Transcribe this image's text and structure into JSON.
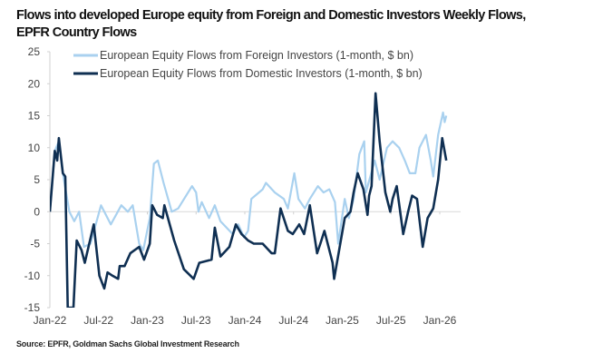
{
  "title_line1": "Flows into developed Europe equity from Foreign and Domestic Investors Weekly Flows,",
  "title_line2": "EPFR Country Flows",
  "source": "Source: EPFR, Goldman Sachs Global Investment Research",
  "chart_data": {
    "type": "line",
    "title": "Flows into developed Europe equity from Foreign and Domestic Investors Weekly Flows, EPFR Country Flows",
    "xlabel": "",
    "ylabel": "",
    "ylim": [
      -15,
      25
    ],
    "yticks": [
      -15,
      -10,
      -5,
      0,
      5,
      10,
      15,
      20,
      25
    ],
    "xlim_months_since_jan22": [
      0,
      49
    ],
    "xticks": [
      {
        "label": "Jan-22",
        "month": 0
      },
      {
        "label": "Jul-22",
        "month": 6
      },
      {
        "label": "Jan-23",
        "month": 12
      },
      {
        "label": "Jul-23",
        "month": 18
      },
      {
        "label": "Jan-24",
        "month": 24
      },
      {
        "label": "Jul-24",
        "month": 30
      },
      {
        "label": "Jan-25",
        "month": 36
      },
      {
        "label": "Jul-25",
        "month": 42
      },
      {
        "label": "Jan-26",
        "month": 48
      }
    ],
    "legend_position": "top",
    "grid": false,
    "series": [
      {
        "name": "European Equity Flows from Foreign Investors (1-month, $ bn)",
        "color": "#a9d1ef",
        "points": [
          [
            0,
            0
          ],
          [
            0.6,
            9.5
          ],
          [
            1.1,
            11
          ],
          [
            1.6,
            6
          ],
          [
            2.4,
            0
          ],
          [
            3,
            -1.5
          ],
          [
            3.6,
            0
          ],
          [
            4.2,
            -5.5
          ],
          [
            5,
            -5
          ],
          [
            6.3,
            1
          ],
          [
            7.5,
            -2
          ],
          [
            8.8,
            1
          ],
          [
            9.6,
            0
          ],
          [
            10.2,
            1
          ],
          [
            11,
            -5
          ],
          [
            11.5,
            -6
          ],
          [
            12.3,
            -1
          ],
          [
            12.8,
            7.5
          ],
          [
            13.3,
            8
          ],
          [
            14,
            4.5
          ],
          [
            15,
            0
          ],
          [
            15.8,
            0.5
          ],
          [
            17.5,
            4
          ],
          [
            18,
            3
          ],
          [
            18.3,
            0
          ],
          [
            18.7,
            1.5
          ],
          [
            19.6,
            -1
          ],
          [
            20.3,
            1
          ],
          [
            21,
            -1.5
          ],
          [
            22.5,
            -3.5
          ],
          [
            23.2,
            -2
          ],
          [
            23.9,
            -4
          ],
          [
            24.4,
            -3
          ],
          [
            24.8,
            2
          ],
          [
            26.2,
            3.5
          ],
          [
            26.6,
            4.5
          ],
          [
            27.7,
            3
          ],
          [
            28.8,
            2
          ],
          [
            29.3,
            0.5
          ],
          [
            30.1,
            6
          ],
          [
            30.6,
            2
          ],
          [
            31.4,
            0.5
          ],
          [
            32,
            2
          ],
          [
            33,
            4
          ],
          [
            33.7,
            3
          ],
          [
            34.4,
            3.5
          ],
          [
            35.1,
            1.5
          ],
          [
            35.5,
            -5
          ],
          [
            36.3,
            2
          ],
          [
            36.8,
            -1
          ],
          [
            37.4,
            2
          ],
          [
            38.1,
            9
          ],
          [
            38.7,
            11
          ],
          [
            38.9,
            3
          ],
          [
            40,
            8
          ],
          [
            40.6,
            5
          ],
          [
            41.5,
            10
          ],
          [
            42.2,
            11
          ],
          [
            43,
            10
          ],
          [
            43.7,
            8
          ],
          [
            44.3,
            6
          ],
          [
            45,
            6
          ],
          [
            45.5,
            10
          ],
          [
            46.3,
            12
          ],
          [
            46.9,
            8
          ],
          [
            47.2,
            5.5
          ],
          [
            47.8,
            12
          ],
          [
            48.4,
            15.5
          ],
          [
            48.6,
            14
          ],
          [
            48.8,
            15
          ]
        ]
      },
      {
        "name": "European Equity Flows from Domestic Investors (1-month, $ bn)",
        "color": "#0f2f52",
        "points": [
          [
            0,
            0
          ],
          [
            0.6,
            9.5
          ],
          [
            0.9,
            8
          ],
          [
            1.1,
            11.5
          ],
          [
            1.6,
            6
          ],
          [
            1.9,
            5.5
          ],
          [
            2.2,
            -15
          ],
          [
            2.9,
            -15
          ],
          [
            3.3,
            -4.5
          ],
          [
            3.9,
            -6
          ],
          [
            4.3,
            -8
          ],
          [
            5.4,
            -2
          ],
          [
            6.1,
            -10
          ],
          [
            6.7,
            -12
          ],
          [
            7.1,
            -9.5
          ],
          [
            7.7,
            -10
          ],
          [
            8.4,
            -10.5
          ],
          [
            8.6,
            -8.5
          ],
          [
            9.2,
            -8.5
          ],
          [
            9.9,
            -6.5
          ],
          [
            11,
            -5.5
          ],
          [
            11.6,
            -7.5
          ],
          [
            12.3,
            -5
          ],
          [
            12.6,
            1
          ],
          [
            13.2,
            -0.5
          ],
          [
            13.9,
            -1
          ],
          [
            14.1,
            1
          ],
          [
            15.3,
            -4.5
          ],
          [
            16.5,
            -9
          ],
          [
            17.7,
            -10.5
          ],
          [
            18.4,
            -8
          ],
          [
            19.9,
            -7.5
          ],
          [
            20.3,
            -2.5
          ],
          [
            21,
            -7
          ],
          [
            22.1,
            -5.5
          ],
          [
            22.9,
            -2
          ],
          [
            23.6,
            -3.5
          ],
          [
            24.4,
            -4.5
          ],
          [
            25.1,
            -5
          ],
          [
            26.2,
            -5
          ],
          [
            27.3,
            -6.5
          ],
          [
            27.7,
            -6.5
          ],
          [
            28.4,
            0.5
          ],
          [
            29.3,
            -3
          ],
          [
            29.9,
            -3.5
          ],
          [
            30.7,
            -2
          ],
          [
            31.3,
            -3.5
          ],
          [
            32,
            1
          ],
          [
            32.9,
            -6.5
          ],
          [
            33.3,
            -5
          ],
          [
            33.8,
            -3
          ],
          [
            34.8,
            -8
          ],
          [
            35,
            -10.5
          ],
          [
            36.3,
            -1
          ],
          [
            37,
            0
          ],
          [
            37.4,
            3
          ],
          [
            37.9,
            6
          ],
          [
            38.6,
            3.5
          ],
          [
            39.1,
            -0.5
          ],
          [
            39.3,
            2.5
          ],
          [
            39.6,
            4
          ],
          [
            40.1,
            18.5
          ],
          [
            40.6,
            11
          ],
          [
            41.3,
            3
          ],
          [
            41.9,
            0
          ],
          [
            42.2,
            2
          ],
          [
            42.7,
            4
          ],
          [
            43.5,
            -3.5
          ],
          [
            44.1,
            0
          ],
          [
            44.6,
            2.5
          ],
          [
            45.2,
            2
          ],
          [
            45.9,
            -5.5
          ],
          [
            46.5,
            -1
          ],
          [
            47.2,
            0.5
          ],
          [
            47.8,
            5
          ],
          [
            48.3,
            11.5
          ],
          [
            48.8,
            8
          ]
        ]
      }
    ]
  }
}
